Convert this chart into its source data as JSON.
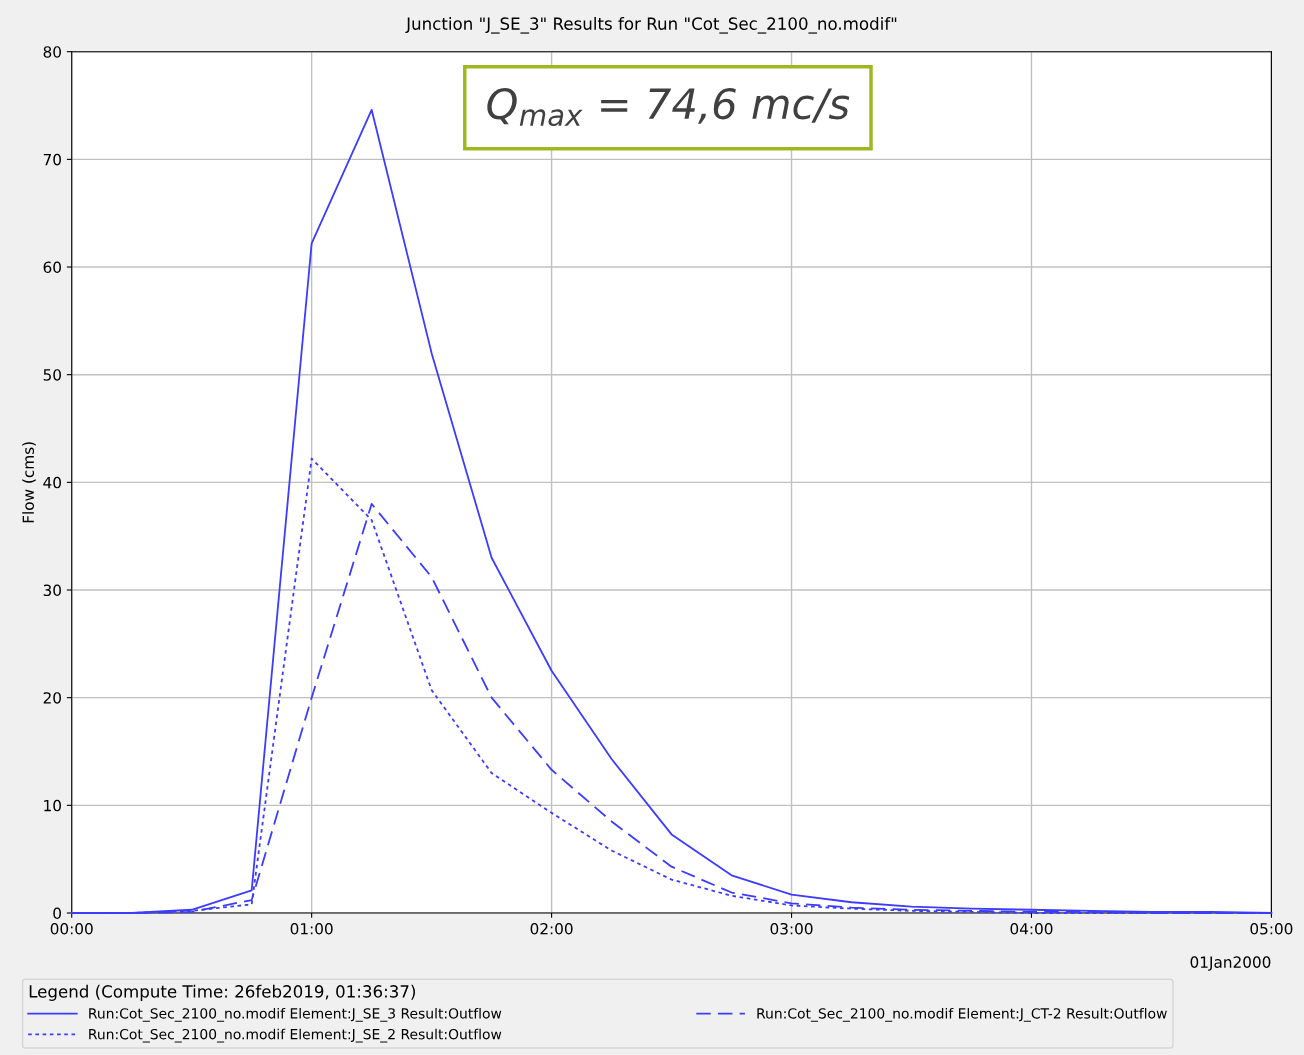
{
  "chart_data": {
    "type": "line",
    "title": "Junction \"J_SE_3\" Results for Run \"Cot_Sec_2100_no.modif\"",
    "ylabel": "Flow (cms)",
    "legend_title": "Legend (Compute Time: 26feb2019, 01:36:37)",
    "x": [
      0,
      0.25,
      0.5,
      0.75,
      1,
      1.25,
      1.5,
      1.75,
      2,
      2.25,
      2.5,
      2.75,
      3,
      3.25,
      3.5,
      3.75,
      4,
      4.25,
      4.5,
      4.75,
      5
    ],
    "series": [
      {
        "name": "Run:Cot_Sec_2100_no.modif Element:J_SE_3 Result:Outflow",
        "color": "#3c3cff",
        "line_style": "solid",
        "values": [
          0,
          0,
          0.3,
          2.1,
          62.2,
          74.6,
          52,
          33,
          22.5,
          14.3,
          7.3,
          3.5,
          1.7,
          1.0,
          0.6,
          0.4,
          0.3,
          0.2,
          0.1,
          0.1,
          0
        ]
      },
      {
        "name": "Run:Cot_Sec_2100_no.modif Element:J_CT-2 Result:Outflow",
        "color": "#3c3cff",
        "line_style": "dashed",
        "values": [
          0,
          0,
          0.1,
          1.2,
          20,
          38,
          31.2,
          20,
          13.3,
          8.5,
          4.3,
          1.9,
          0.9,
          0.5,
          0.3,
          0.2,
          0.1,
          0.1,
          0,
          0,
          0
        ]
      },
      {
        "name": "Run:Cot_Sec_2100_no.modif Element:J_SE_2 Result:Outflow",
        "color": "#3c3cff",
        "line_style": "dotted",
        "values": [
          0,
          0,
          0.2,
          0.8,
          42.2,
          36.5,
          20.7,
          13,
          9.3,
          5.8,
          3.1,
          1.6,
          0.7,
          0.4,
          0.2,
          0.1,
          0,
          0,
          0,
          0,
          0
        ]
      }
    ],
    "xlim": [
      0,
      5
    ],
    "xticks": [
      {
        "value": 0,
        "label": "00:00"
      },
      {
        "value": 1,
        "label": "01:00"
      },
      {
        "value": 2,
        "label": "02:00"
      },
      {
        "value": 3,
        "label": "03:00"
      },
      {
        "value": 4,
        "label": "04:00"
      },
      {
        "value": 5,
        "label": "05:00"
      }
    ],
    "ylim": [
      0,
      80
    ],
    "yticks": [
      0,
      10,
      20,
      30,
      40,
      50,
      60,
      70,
      80
    ],
    "annotations": [
      "Q$_{max}$ = 74,6 mc/s",
      "01Jan2000"
    ],
    "grid": true,
    "legend": "bottom",
    "marker": "none"
  }
}
